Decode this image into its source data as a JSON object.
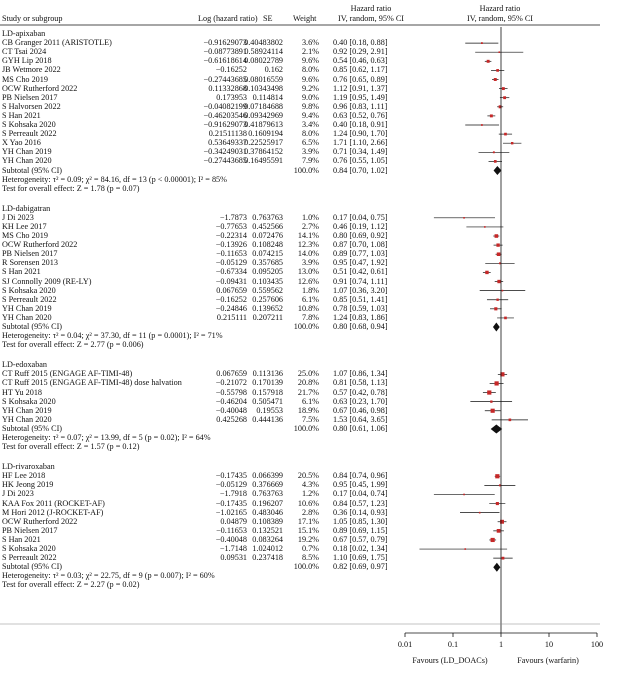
{
  "header": {
    "study_col": "Study or subgroup",
    "loghr_col": "Log (hazard ratio)",
    "se_col": "SE",
    "weight_col": "Weight",
    "hr_col_title": "Hazard ratio",
    "hr_col_sub": "IV, random, 95% CI",
    "plot_col_title": "Hazard ratio",
    "plot_col_sub": "IV, random, 95% CI"
  },
  "chart_data": {
    "type": "forest",
    "x_scale": "log",
    "xlim": [
      0.01,
      100
    ],
    "x_ticks": [
      "0.01",
      "0.1",
      "1",
      "10",
      "100"
    ],
    "x_tick_values": [
      0.01,
      0.1,
      1,
      10,
      100
    ],
    "xlabel_left": "Favours (LD_DOACs)",
    "xlabel_right": "Favours (warfarin)",
    "groups": [
      {
        "name": "LD-apixaban",
        "studies": [
          {
            "study": "CB Granger 2011 (ARISTOTLE)",
            "loghr": "−0.91629073",
            "se": "0.40483802",
            "weight": "3.6%",
            "ci": "0.40 [0.18, 0.88]",
            "hr": 0.4,
            "lo": 0.18,
            "hi": 0.88
          },
          {
            "study": "CT Tsai 2024",
            "loghr": "−0.08773891",
            "se": "0.58924114",
            "weight": "2.1%",
            "ci": "0.92 [0.29, 2.91]",
            "hr": 0.92,
            "lo": 0.29,
            "hi": 2.91
          },
          {
            "study": "GYH Lip 2018",
            "loghr": "−0.61618614",
            "se": "0.08022789",
            "weight": "9.6%",
            "ci": "0.54 [0.46, 0.63]",
            "hr": 0.54,
            "lo": 0.46,
            "hi": 0.63
          },
          {
            "study": "JB Wetmore 2022",
            "loghr": "−0.16252",
            "se": "0.162",
            "weight": "8.0%",
            "ci": "0.85 [0.62, 1.17]",
            "hr": 0.85,
            "lo": 0.62,
            "hi": 1.17
          },
          {
            "study": "MS Cho 2019",
            "loghr": "−0.27443685",
            "se": "0.08016559",
            "weight": "9.6%",
            "ci": "0.76 [0.65, 0.89]",
            "hr": 0.76,
            "lo": 0.65,
            "hi": 0.89
          },
          {
            "study": "OCW Rutherford 2022",
            "loghr": "0.11332868",
            "se": "0.10343498",
            "weight": "9.2%",
            "ci": "1.12 [0.91, 1.37]",
            "hr": 1.12,
            "lo": 0.91,
            "hi": 1.37
          },
          {
            "study": "PB Nielsen 2017",
            "loghr": "0.173953",
            "se": "0.114814",
            "weight": "9.0%",
            "ci": "1.19 [0.95, 1.49]",
            "hr": 1.19,
            "lo": 0.95,
            "hi": 1.49
          },
          {
            "study": "S Halvorsen 2022",
            "loghr": "−0.04082199",
            "se": "0.07184688",
            "weight": "9.8%",
            "ci": "0.96 [0.83, 1.11]",
            "hr": 0.96,
            "lo": 0.83,
            "hi": 1.11
          },
          {
            "study": "S Han 2021",
            "loghr": "−0.46203546",
            "se": "0.09342969",
            "weight": "9.4%",
            "ci": "0.63 [0.52, 0.76]",
            "hr": 0.63,
            "lo": 0.52,
            "hi": 0.76
          },
          {
            "study": "S Kohsaka 2020",
            "loghr": "−0.91629073",
            "se": "0.41879613",
            "weight": "3.4%",
            "ci": "0.40 [0.18, 0.91]",
            "hr": 0.4,
            "lo": 0.18,
            "hi": 0.91
          },
          {
            "study": "S Perreault 2022",
            "loghr": "0.21511138",
            "se": "0.1609194",
            "weight": "8.0%",
            "ci": "1.24 [0.90, 1.70]",
            "hr": 1.24,
            "lo": 0.9,
            "hi": 1.7
          },
          {
            "study": "X Yao 2016",
            "loghr": "0.53649337",
            "se": "0.22525917",
            "weight": "6.5%",
            "ci": "1.71 [1.10, 2.66]",
            "hr": 1.71,
            "lo": 1.1,
            "hi": 2.66
          },
          {
            "study": "YH Chan 2019",
            "loghr": "−0.34249031",
            "se": "0.37864152",
            "weight": "3.9%",
            "ci": "0.71 [0.34, 1.49]",
            "hr": 0.71,
            "lo": 0.34,
            "hi": 1.49
          },
          {
            "study": "YH Chan 2020",
            "loghr": "−0.27443685",
            "se": "0.16495591",
            "weight": "7.9%",
            "ci": "0.76 [0.55, 1.05]",
            "hr": 0.76,
            "lo": 0.55,
            "hi": 1.05
          }
        ],
        "subtotal": {
          "label": "Subtotal (95% CI)",
          "weight": "100.0%",
          "ci": "0.84 [0.70, 1.02]",
          "hr": 0.84,
          "lo": 0.7,
          "hi": 1.02
        },
        "heterogeneity": "Heterogeneity: τ² = 0.09; χ² = 84.16, df = 13 (p < 0.00001); I² = 85%",
        "overall_test": "Test for overall effect: Z = 1.78 (p = 0.07)"
      },
      {
        "name": "LD-dabigatran",
        "studies": [
          {
            "study": "J Di 2023",
            "loghr": "−1.7873",
            "se": "0.763763",
            "weight": "1.0%",
            "ci": "0.17 [0.04, 0.75]",
            "hr": 0.17,
            "lo": 0.04,
            "hi": 0.75
          },
          {
            "study": "KH Lee 2017",
            "loghr": "−0.77653",
            "se": "0.452566",
            "weight": "2.7%",
            "ci": "0.46 [0.19, 1.12]",
            "hr": 0.46,
            "lo": 0.19,
            "hi": 1.12
          },
          {
            "study": "MS Cho 2019",
            "loghr": "−0.22314",
            "se": "0.072476",
            "weight": "14.1%",
            "ci": "0.80 [0.69, 0.92]",
            "hr": 0.8,
            "lo": 0.69,
            "hi": 0.92
          },
          {
            "study": "OCW Rutherford 2022",
            "loghr": "−0.13926",
            "se": "0.108248",
            "weight": "12.3%",
            "ci": "0.87 [0.70, 1.08]",
            "hr": 0.87,
            "lo": 0.7,
            "hi": 1.08
          },
          {
            "study": "PB Nielsen 2017",
            "loghr": "−0.11653",
            "se": "0.074215",
            "weight": "14.0%",
            "ci": "0.89 [0.77, 1.03]",
            "hr": 0.89,
            "lo": 0.77,
            "hi": 1.03
          },
          {
            "study": "R Sorensen 2013",
            "loghr": "−0.05129",
            "se": "0.357685",
            "weight": "3.9%",
            "ci": "0.95 [0.47, 1.92]",
            "hr": 0.95,
            "lo": 0.47,
            "hi": 1.92
          },
          {
            "study": "S Han 2021",
            "loghr": "−0.67334",
            "se": "0.095205",
            "weight": "13.0%",
            "ci": "0.51 [0.42, 0.61]",
            "hr": 0.51,
            "lo": 0.42,
            "hi": 0.61
          },
          {
            "study": "SJ Connolly 2009 (RE-LY)",
            "loghr": "−0.09431",
            "se": "0.103435",
            "weight": "12.6%",
            "ci": "0.91 [0.74, 1.11]",
            "hr": 0.91,
            "lo": 0.74,
            "hi": 1.11
          },
          {
            "study": "S Kohsaka 2020",
            "loghr": "0.067659",
            "se": "0.559562",
            "weight": "1.8%",
            "ci": "1.07 [0.36, 3.20]",
            "hr": 1.07,
            "lo": 0.36,
            "hi": 3.2
          },
          {
            "study": "S Perreault 2022",
            "loghr": "−0.16252",
            "se": "0.257606",
            "weight": "6.1%",
            "ci": "0.85 [0.51, 1.41]",
            "hr": 0.85,
            "lo": 0.51,
            "hi": 1.41
          },
          {
            "study": "YH Chan 2019",
            "loghr": "−0.24846",
            "se": "0.139652",
            "weight": "10.8%",
            "ci": "0.78 [0.59, 1.03]",
            "hr": 0.78,
            "lo": 0.59,
            "hi": 1.03
          },
          {
            "study": "YH Chan 2020",
            "loghr": "0.215111",
            "se": "0.207211",
            "weight": "7.8%",
            "ci": "1.24 [0.83, 1.86]",
            "hr": 1.24,
            "lo": 0.83,
            "hi": 1.86
          }
        ],
        "subtotal": {
          "label": "Subtotal (95% CI)",
          "weight": "100.0%",
          "ci": "0.80 [0.68, 0.94]",
          "hr": 0.8,
          "lo": 0.68,
          "hi": 0.94
        },
        "heterogeneity": "Heterogeneity: τ² = 0.04; χ² = 37.30, df = 11 (p = 0.0001); I² = 71%",
        "overall_test": "Test for overall effect: Z = 2.77 (p = 0.006)"
      },
      {
        "name": "LD-edoxaban",
        "studies": [
          {
            "study": "CT Ruff 2015 (ENGAGE AF-TIMI-48)",
            "loghr": "0.067659",
            "se": "0.113136",
            "weight": "25.0%",
            "ci": "1.07 [0.86, 1.34]",
            "hr": 1.07,
            "lo": 0.86,
            "hi": 1.34
          },
          {
            "study": "CT Ruff 2015 (ENGAGE AF-TIMI-48) dose halvation",
            "loghr": "−0.21072",
            "se": "0.170139",
            "weight": "20.8%",
            "ci": "0.81 [0.58, 1.13]",
            "hr": 0.81,
            "lo": 0.58,
            "hi": 1.13
          },
          {
            "study": "HT Yu 2018",
            "loghr": "−0.55798",
            "se": "0.157918",
            "weight": "21.7%",
            "ci": "0.57 [0.42, 0.78]",
            "hr": 0.57,
            "lo": 0.42,
            "hi": 0.78
          },
          {
            "study": "S Kohsaka 2020",
            "loghr": "−0.46204",
            "se": "0.505471",
            "weight": "6.1%",
            "ci": "0.63 [0.23, 1.70]",
            "hr": 0.63,
            "lo": 0.23,
            "hi": 1.7
          },
          {
            "study": "YH Chan 2019",
            "loghr": "−0.40048",
            "se": "0.19553",
            "weight": "18.9%",
            "ci": "0.67 [0.46, 0.98]",
            "hr": 0.67,
            "lo": 0.46,
            "hi": 0.98
          },
          {
            "study": "YH Chan 2020",
            "loghr": "0.425268",
            "se": "0.444136",
            "weight": "7.5%",
            "ci": "1.53 [0.64, 3.65]",
            "hr": 1.53,
            "lo": 0.64,
            "hi": 3.65
          }
        ],
        "subtotal": {
          "label": "Subtotal (95% CI)",
          "weight": "100.0%",
          "ci": "0.80 [0.61, 1.06]",
          "hr": 0.8,
          "lo": 0.61,
          "hi": 1.06
        },
        "heterogeneity": "Heterogeneity: τ² = 0.07; χ² = 13.99, df = 5 (p = 0.02); I² = 64%",
        "overall_test": "Test for overall effect: Z = 1.57 (p = 0.12)"
      },
      {
        "name": "LD-rivaroxaban",
        "studies": [
          {
            "study": "HF Lee 2018",
            "loghr": "−0.17435",
            "se": "0.066399",
            "weight": "20.5%",
            "ci": "0.84 [0.74, 0.96]",
            "hr": 0.84,
            "lo": 0.74,
            "hi": 0.96
          },
          {
            "study": "HK Jeong 2019",
            "loghr": "−0.05129",
            "se": "0.376669",
            "weight": "4.3%",
            "ci": "0.95 [0.45, 1.99]",
            "hr": 0.95,
            "lo": 0.45,
            "hi": 1.99
          },
          {
            "study": "J Di 2023",
            "loghr": "−1.7918",
            "se": "0.763763",
            "weight": "1.2%",
            "ci": "0.17 [0.04, 0.74]",
            "hr": 0.17,
            "lo": 0.04,
            "hi": 0.74
          },
          {
            "study": "KAA Fox 2011 (ROCKET-AF)",
            "loghr": "−0.17435",
            "se": "0.196207",
            "weight": "10.6%",
            "ci": "0.84 [0.57, 1.23]",
            "hr": 0.84,
            "lo": 0.57,
            "hi": 1.23
          },
          {
            "study": "M Hori 2012 (J-ROCKET-AF)",
            "loghr": "−1.02165",
            "se": "0.483046",
            "weight": "2.8%",
            "ci": "0.36 [0.14, 0.93]",
            "hr": 0.36,
            "lo": 0.14,
            "hi": 0.93
          },
          {
            "study": "OCW Rutherford 2022",
            "loghr": "0.04879",
            "se": "0.108389",
            "weight": "17.1%",
            "ci": "1.05 [0.85, 1.30]",
            "hr": 1.05,
            "lo": 0.85,
            "hi": 1.3
          },
          {
            "study": "PB Nielsen 2017",
            "loghr": "−0.11653",
            "se": "0.132521",
            "weight": "15.1%",
            "ci": "0.89 [0.69, 1.15]",
            "hr": 0.89,
            "lo": 0.69,
            "hi": 1.15
          },
          {
            "study": "S Han 2021",
            "loghr": "−0.40048",
            "se": "0.083264",
            "weight": "19.2%",
            "ci": "0.67 [0.57, 0.79]",
            "hr": 0.67,
            "lo": 0.57,
            "hi": 0.79
          },
          {
            "study": "S Kohsaka 2020",
            "loghr": "−1.7148",
            "se": "1.024012",
            "weight": "0.7%",
            "ci": "0.18 [0.02, 1.34]",
            "hr": 0.18,
            "lo": 0.02,
            "hi": 1.34
          },
          {
            "study": "S Perreault 2022",
            "loghr": "0.09531",
            "se": "0.237418",
            "weight": "8.5%",
            "ci": "1.10 [0.69, 1.75]",
            "hr": 1.1,
            "lo": 0.69,
            "hi": 1.75
          }
        ],
        "subtotal": {
          "label": "Subtotal (95% CI)",
          "weight": "100.0%",
          "ci": "0.82 [0.69, 0.97]",
          "hr": 0.82,
          "lo": 0.69,
          "hi": 0.97
        },
        "heterogeneity": "Heterogeneity: τ² = 0.03; χ² = 22.75, df = 9 (p = 0.007); I² = 60%",
        "overall_test": "Test for overall effect: Z = 2.27 (p = 0.02)"
      }
    ],
    "colors": {
      "ink": "#111111",
      "square": "#c62828",
      "diamond": "#111111"
    }
  }
}
